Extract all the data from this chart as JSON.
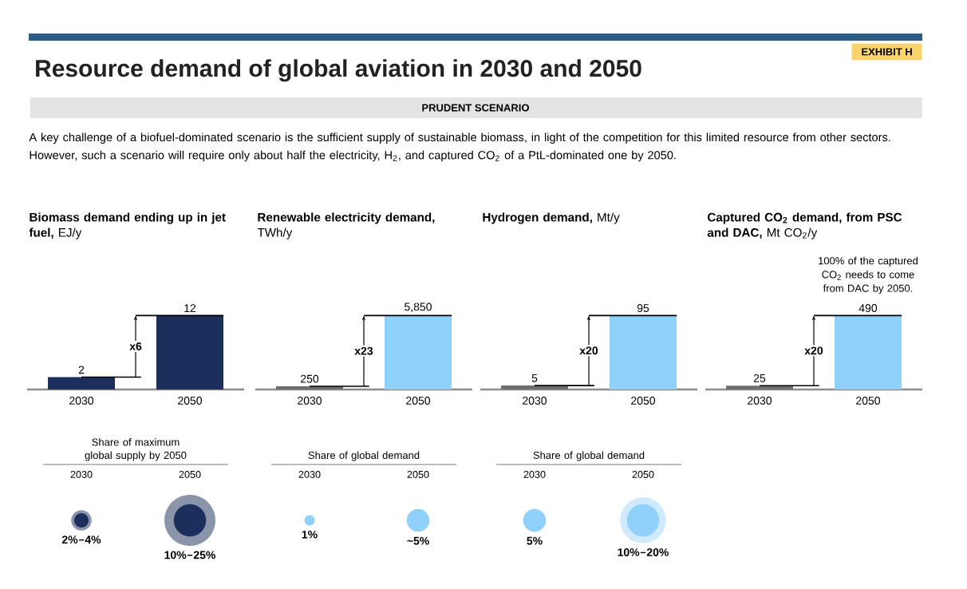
{
  "chart_data": [
    {
      "type": "other",
      "title": "Resource demand of global aviation in 2030 and 2050",
      "subtitle": "PRUDENT SCENARIO",
      "annotations": [
        "EXHIBIT H",
        "A key challenge of a biofuel-dominated scenario is the sufficient supply of sustainable biomass, in light of the competition for this limited resource from other sectors. However, such a scenario will require only about half the electricity, H$_{2}$, and captured CO$_{2}$ of a PtL-dominated one by 2050."
      ]
    },
    {
      "type": "bar",
      "title": "**Biomass demand ending up in jet fuel,** EJ/y",
      "categories": [
        "2030",
        "2050"
      ],
      "values": [
        2,
        12
      ],
      "colors": [
        "#1c2f5c",
        "#1c2f5c"
      ],
      "value_labels": [
        "2",
        "12"
      ],
      "annotations": [
        "x6"
      ]
    },
    {
      "type": "bar",
      "title": "**Renewable electricity demand,** TWh/y",
      "categories": [
        "2030",
        "2050"
      ],
      "values": [
        250,
        5850
      ],
      "colors": [
        "#6e6e6e",
        "#8fd1fb"
      ],
      "value_labels": [
        "250",
        "5,850"
      ],
      "annotations": [
        "x23"
      ]
    },
    {
      "type": "bar",
      "title": "**Hydrogen demand,** Mt/y",
      "categories": [
        "2030",
        "2050"
      ],
      "values": [
        5,
        95
      ],
      "colors": [
        "#6e6e6e",
        "#8fd1fb"
      ],
      "value_labels": [
        "5",
        "95"
      ],
      "annotations": [
        "x20"
      ]
    },
    {
      "type": "bar",
      "title": "**Captured CO$_{2}$ demand, from PSC and DAC,** Mt CO$_{2}$/y",
      "categories": [
        "2030",
        "2050"
      ],
      "values": [
        25,
        490
      ],
      "colors": [
        "#6e6e6e",
        "#8fd1fb"
      ],
      "value_labels": [
        "25",
        "490"
      ],
      "annotations": [
        "x20",
        "100% of the captured CO$_{2}$ needs to come from DAC by 2050."
      ]
    },
    {
      "type": "other",
      "title": "Share of maximum global supply by 2050",
      "categories": [
        "2030",
        "2050"
      ],
      "series": [
        {
          "color": "#8b95aa",
          "values": [
            4,
            25
          ],
          "value_labels": [
            "4%",
            "25%"
          ]
        },
        {
          "color": "#1c2f5c",
          "values": [
            2,
            10
          ],
          "value_labels": [
            "2%",
            "10%"
          ]
        }
      ]
    },
    {
      "type": "other",
      "title": "Share of global demand",
      "categories": [
        "2030",
        "2050"
      ],
      "series": [
        {
          "color": "#8fd1fb",
          "values": [
            1,
            5
          ],
          "value_labels": [
            "1%",
            "~5%"
          ]
        }
      ]
    },
    {
      "type": "other",
      "title": "Share of global demand",
      "categories": [
        "2030",
        "2050"
      ],
      "series": [
        {
          "color": "#cfeafd",
          "values": [
            null,
            20
          ],
          "value_labels": [
            null,
            "20%"
          ]
        },
        {
          "color": "#8fd1fb",
          "values": [
            5,
            10
          ],
          "value_labels": [
            "5%",
            "10%"
          ]
        }
      ]
    }
  ]
}
